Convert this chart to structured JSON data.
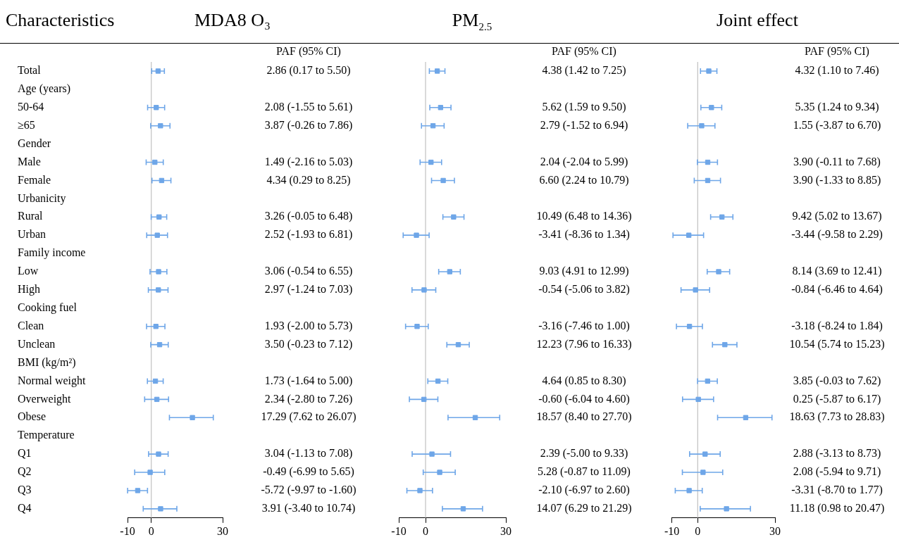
{
  "chart_data": [
    {
      "type": "scatter",
      "title": "MDA8 O₃",
      "ylabel": "Characteristics",
      "orientation": "horizontal",
      "marker": "square",
      "color": "#6ea6e8",
      "categories": [
        "Total",
        "Age (years)",
        "50-64",
        "≥65",
        "Gender",
        "Male",
        "Female",
        "Urbanicity",
        "Rural",
        "Urban",
        "Family income",
        "Low",
        "High",
        "Cooking fuel",
        "Clean",
        "Unclean",
        "BMI (kg/m²)",
        "Normal weight",
        "Overweight",
        "Obese",
        "Temperature",
        "Q1",
        "Q2",
        "Q3",
        "Q4"
      ],
      "values": [
        2.86,
        null,
        2.08,
        3.87,
        null,
        1.49,
        4.34,
        null,
        3.26,
        2.52,
        null,
        3.06,
        2.97,
        null,
        1.93,
        3.5,
        null,
        1.73,
        2.34,
        17.29,
        null,
        3.04,
        -0.49,
        -5.72,
        3.91
      ],
      "errors": [
        [
          0.17,
          5.5
        ],
        null,
        [
          -1.55,
          5.61
        ],
        [
          -0.26,
          7.86
        ],
        null,
        [
          -2.16,
          5.03
        ],
        [
          0.29,
          8.25
        ],
        null,
        [
          -0.05,
          6.48
        ],
        [
          -1.93,
          6.81
        ],
        null,
        [
          -0.54,
          6.55
        ],
        [
          -1.24,
          7.03
        ],
        null,
        [
          -2.0,
          5.73
        ],
        [
          -0.23,
          7.12
        ],
        null,
        [
          -1.64,
          5.0
        ],
        [
          -2.8,
          7.26
        ],
        [
          7.62,
          26.07
        ],
        null,
        [
          -1.13,
          7.08
        ],
        [
          -6.99,
          5.65
        ],
        [
          -9.97,
          -1.6
        ],
        [
          -3.4,
          10.74
        ]
      ],
      "value_labels": [
        "2.86 (0.17 to 5.50)",
        null,
        "2.08 (-1.55 to 5.61)",
        "3.87 (-0.26 to 7.86)",
        null,
        "1.49 (-2.16 to 5.03)",
        "4.34 (0.29 to 8.25)",
        null,
        "3.26 (-0.05 to 6.48)",
        "2.52 (-1.93 to 6.81)",
        null,
        "3.06 (-0.54 to 6.55)",
        "2.97 (-1.24 to 7.03)",
        null,
        "1.93 (-2.00 to 5.73)",
        "3.50 (-0.23 to 7.12)",
        null,
        "1.73 (-1.64 to 5.00)",
        "2.34 (-2.80 to 7.26)",
        "17.29 (7.62 to 26.07)",
        null,
        "3.04 (-1.13 to 7.08)",
        "-0.49 (-6.99 to 5.65)",
        "-5.72 (-9.97 to -1.60)",
        "3.91 (-3.40 to 10.74)"
      ],
      "xlim": [
        -10,
        30
      ],
      "xticks": [
        -10,
        0,
        30
      ],
      "ref_lines": [
        {
          "axis": "x",
          "value": 0,
          "color": "#b4b4b4"
        }
      ],
      "annotations": [
        "PAF (95% CI)"
      ],
      "legend": false
    },
    {
      "type": "scatter",
      "title": "PM$_{2.5}$",
      "orientation": "horizontal",
      "marker": "square",
      "color": "#6ea6e8",
      "tick_labels": "x",
      "categories": [
        null,
        null,
        null,
        null,
        null,
        null,
        null,
        null,
        null,
        null,
        null,
        null,
        null,
        null,
        null,
        null,
        null,
        null,
        null,
        null,
        null,
        null,
        null,
        null,
        null
      ],
      "values": [
        4.38,
        null,
        5.62,
        2.79,
        null,
        2.04,
        6.6,
        null,
        10.49,
        -3.41,
        null,
        9.03,
        -0.54,
        null,
        -3.16,
        12.23,
        null,
        4.64,
        -0.6,
        18.57,
        null,
        2.39,
        5.28,
        -2.1,
        14.07
      ],
      "errors": [
        [
          1.42,
          7.25
        ],
        null,
        [
          1.59,
          9.5
        ],
        [
          -1.52,
          6.94
        ],
        null,
        [
          -2.04,
          5.99
        ],
        [
          2.24,
          10.79
        ],
        null,
        [
          6.48,
          14.36
        ],
        [
          -8.36,
          1.34
        ],
        null,
        [
          4.91,
          12.99
        ],
        [
          -5.06,
          3.82
        ],
        null,
        [
          -7.46,
          1.0
        ],
        [
          7.96,
          16.33
        ],
        null,
        [
          0.85,
          8.3
        ],
        [
          -6.04,
          4.6
        ],
        [
          8.4,
          27.7
        ],
        null,
        [
          -5.0,
          9.33
        ],
        [
          -0.87,
          11.09
        ],
        [
          -6.97,
          2.6
        ],
        [
          6.29,
          21.29
        ]
      ],
      "value_labels": [
        "4.38 (1.42 to 7.25)",
        null,
        "5.62 (1.59 to 9.50)",
        "2.79 (-1.52 to 6.94)",
        null,
        "2.04 (-2.04 to 5.99)",
        "6.60 (2.24 to 10.79)",
        null,
        "10.49 (6.48 to 14.36)",
        "-3.41 (-8.36 to 1.34)",
        null,
        "9.03 (4.91 to 12.99)",
        "-0.54 (-5.06 to 3.82)",
        null,
        "-3.16 (-7.46 to 1.00)",
        "12.23 (7.96 to 16.33)",
        null,
        "4.64 (0.85 to 8.30)",
        "-0.60 (-6.04 to 4.60)",
        "18.57 (8.40 to 27.70)",
        null,
        "2.39 (-5.00 to 9.33)",
        "5.28 (-0.87 to 11.09)",
        "-2.10 (-6.97 to 2.60)",
        "14.07 (6.29 to 21.29)"
      ],
      "xlim": [
        -10,
        30
      ],
      "xticks": [
        -10,
        0,
        30
      ],
      "ref_lines": [
        {
          "axis": "x",
          "value": 0,
          "color": "#b4b4b4"
        }
      ],
      "annotations": [
        "PAF (95% CI)"
      ],
      "legend": false
    },
    {
      "type": "scatter",
      "title": "Joint effect",
      "orientation": "horizontal",
      "marker": "square",
      "color": "#6ea6e8",
      "tick_labels": "x",
      "categories": [
        null,
        null,
        null,
        null,
        null,
        null,
        null,
        null,
        null,
        null,
        null,
        null,
        null,
        null,
        null,
        null,
        null,
        null,
        null,
        null,
        null,
        null,
        null,
        null,
        null
      ],
      "values": [
        4.32,
        null,
        5.35,
        1.55,
        null,
        3.9,
        3.9,
        null,
        9.42,
        -3.44,
        null,
        8.14,
        -0.84,
        null,
        -3.18,
        10.54,
        null,
        3.85,
        0.25,
        18.63,
        null,
        2.88,
        2.08,
        -3.31,
        11.18
      ],
      "errors": [
        [
          1.1,
          7.46
        ],
        null,
        [
          1.24,
          9.34
        ],
        [
          -3.87,
          6.7
        ],
        null,
        [
          -0.11,
          7.68
        ],
        [
          -1.33,
          8.85
        ],
        null,
        [
          5.02,
          13.67
        ],
        [
          -9.58,
          2.29
        ],
        null,
        [
          3.69,
          12.41
        ],
        [
          -6.46,
          4.64
        ],
        null,
        [
          -8.24,
          1.84
        ],
        [
          5.74,
          15.23
        ],
        null,
        [
          -0.03,
          7.62
        ],
        [
          -5.87,
          6.17
        ],
        [
          7.73,
          28.83
        ],
        null,
        [
          -3.13,
          8.73
        ],
        [
          -5.94,
          9.71
        ],
        [
          -8.7,
          1.77
        ],
        [
          0.98,
          20.47
        ]
      ],
      "value_labels": [
        "4.32 (1.10 to 7.46)",
        null,
        "5.35 (1.24 to 9.34)",
        "1.55 (-3.87 to 6.70)",
        null,
        "3.90 (-0.11 to 7.68)",
        "3.90 (-1.33 to 8.85)",
        null,
        "9.42 (5.02 to 13.67)",
        "-3.44 (-9.58 to 2.29)",
        null,
        "8.14 (3.69 to 12.41)",
        "-0.84 (-6.46 to 4.64)",
        null,
        "-3.18 (-8.24 to 1.84)",
        "10.54 (5.74 to 15.23)",
        null,
        "3.85 (-0.03 to 7.62)",
        "0.25 (-5.87 to 6.17)",
        "18.63 (7.73 to 28.83)",
        null,
        "2.88 (-3.13 to 8.73)",
        "2.08 (-5.94 to 9.71)",
        "-3.31 (-8.70 to 1.77)",
        "11.18 (0.98 to 20.47)"
      ],
      "xlim": [
        -10,
        30
      ],
      "xticks": [
        -10,
        0,
        30
      ],
      "ref_lines": [
        {
          "axis": "x",
          "value": 0,
          "color": "#b4b4b4"
        }
      ],
      "annotations": [
        "PAF (95% CI)"
      ],
      "legend": false
    }
  ]
}
